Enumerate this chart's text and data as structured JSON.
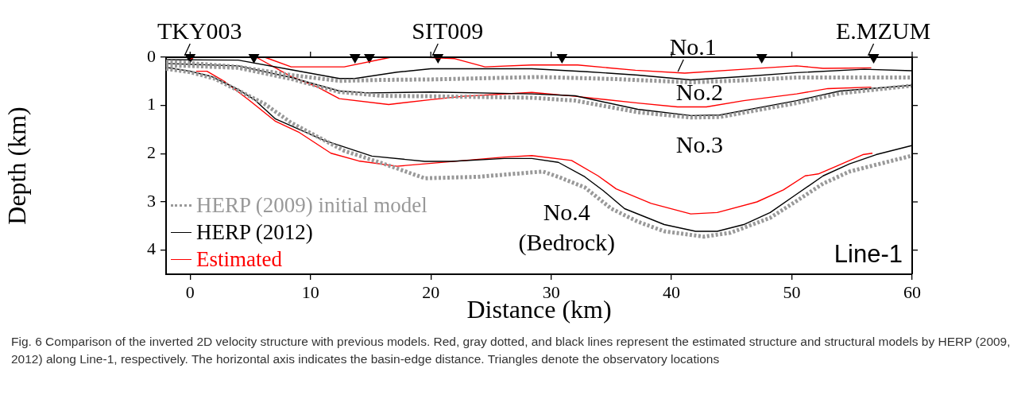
{
  "chart_data": {
    "type": "line",
    "xlabel": "Distance (km)",
    "ylabel": "Depth (km)",
    "xlim": [
      -2,
      60
    ],
    "xticks": [
      0,
      10,
      20,
      30,
      40,
      50,
      60
    ],
    "ylim": [
      4.5,
      0
    ],
    "yticks": [
      0,
      1,
      2,
      3,
      4
    ],
    "grid": false,
    "legend": "bottom left",
    "marker": "none",
    "series": [
      {
        "name": "HERP (2009) initial model",
        "color": "#999999",
        "line_style": "dotted",
        "x": [
          -2,
          0,
          4,
          8.4,
          12.4,
          16,
          20,
          29,
          35,
          41.6,
          46,
          50.4,
          55,
          60
        ],
        "values": [
          0.09,
          0.12,
          0.2,
          0.37,
          0.49,
          0.47,
          0.46,
          0.41,
          0.45,
          0.52,
          0.48,
          0.42,
          0.42,
          0.42
        ]
      },
      {
        "color": "#999999",
        "line_style": "dotted",
        "x": [
          -2,
          0,
          4,
          8.4,
          12.4,
          16,
          20,
          28.4,
          32,
          37.2,
          41.6,
          44,
          50.4,
          54,
          60
        ],
        "values": [
          0.17,
          0.18,
          0.22,
          0.45,
          0.72,
          0.8,
          0.81,
          0.84,
          0.9,
          1.14,
          1.25,
          1.24,
          0.95,
          0.75,
          0.59
        ]
      },
      {
        "color": "#999999",
        "line_style": "dotted",
        "x": [
          -2,
          0,
          2,
          4,
          6.2,
          8.4,
          10.6,
          12.8,
          16.1,
          19.5,
          23.9,
          29.3,
          30.6,
          32.8,
          35,
          37.2,
          39.4,
          42.7,
          44.9,
          48.2,
          50.4,
          52.6,
          54.8,
          57,
          60
        ],
        "values": [
          0.24,
          0.31,
          0.44,
          0.69,
          0.97,
          1.36,
          1.65,
          1.94,
          2.21,
          2.51,
          2.48,
          2.37,
          2.48,
          2.7,
          3.14,
          3.41,
          3.61,
          3.72,
          3.64,
          3.33,
          2.98,
          2.62,
          2.37,
          2.23,
          2.04
        ]
      },
      {
        "name": "HERP (2012)",
        "color": "#000000",
        "line_style": "solid",
        "x": [
          -2,
          4,
          8.4,
          12.4,
          13.7,
          17.2,
          20,
          28.4,
          33,
          37.2,
          41.6,
          46,
          50.4,
          56,
          60
        ],
        "values": [
          0.05,
          0.06,
          0.26,
          0.44,
          0.44,
          0.31,
          0.24,
          0.24,
          0.3,
          0.37,
          0.47,
          0.4,
          0.32,
          0.25,
          0.28
        ]
      },
      {
        "color": "#000000",
        "line_style": "solid",
        "x": [
          -2,
          4,
          8.4,
          12.4,
          14.8,
          20,
          28.4,
          32,
          37.2,
          41.6,
          44,
          50.4,
          54,
          60
        ],
        "values": [
          0.13,
          0.18,
          0.42,
          0.7,
          0.74,
          0.72,
          0.76,
          0.8,
          1.08,
          1.21,
          1.2,
          0.9,
          0.7,
          0.58
        ]
      },
      {
        "color": "#000000",
        "line_style": "solid",
        "x": [
          -2,
          0,
          1.8,
          4,
          5.3,
          7.1,
          11.1,
          15.1,
          19.5,
          21.7,
          26.1,
          28.4,
          30.6,
          32.8,
          34.3,
          36.1,
          39.4,
          42,
          43.8,
          46,
          48.2,
          50.4,
          52.6,
          54.8,
          57,
          60
        ],
        "values": [
          0.21,
          0.29,
          0.4,
          0.67,
          0.87,
          1.28,
          1.72,
          2.05,
          2.16,
          2.16,
          2.1,
          2.1,
          2.18,
          2.48,
          2.76,
          3.14,
          3.47,
          3.61,
          3.61,
          3.47,
          3.22,
          2.84,
          2.46,
          2.21,
          2.02,
          1.83
        ]
      },
      {
        "name": "Estimated",
        "color": "#ff0000",
        "line_style": "solid",
        "x": [
          0,
          0.3,
          6.2,
          8.4,
          12.8,
          16.7,
          19.4,
          22,
          24.5,
          28.4,
          32.2,
          37,
          41.1,
          46,
          50.4,
          52.6,
          56.6
        ],
        "values": [
          0.05,
          0,
          0,
          0.2,
          0.2,
          0,
          0,
          0.03,
          0.2,
          0.16,
          0.16,
          0.27,
          0.33,
          0.25,
          0.18,
          0.23,
          0.22
        ]
      },
      {
        "color": "#ff0000",
        "line_style": "solid",
        "x": [
          5.5,
          8.4,
          10.6,
          12.4,
          16.5,
          20,
          22.7,
          28.4,
          32,
          37.2,
          40.5,
          42.9,
          46,
          50.4,
          53,
          56.6
        ],
        "values": [
          0,
          0.4,
          0.62,
          0.86,
          0.98,
          0.88,
          0.81,
          0.73,
          0.81,
          0.95,
          1.03,
          1.03,
          0.9,
          0.76,
          0.65,
          0.62
        ]
      },
      {
        "color": "#ff0000",
        "line_style": "solid",
        "x": [
          0.5,
          1.4,
          2.9,
          4.9,
          7.1,
          9,
          11.7,
          14,
          17.2,
          19.5,
          26.1,
          28.4,
          31.7,
          33.9,
          35.4,
          38.3,
          41.6,
          43.8,
          47.1,
          49.3,
          51.1,
          52.2,
          53.7,
          55.9,
          56.7
        ],
        "values": [
          0.29,
          0.29,
          0.51,
          0.89,
          1.33,
          1.55,
          1.99,
          2.15,
          2.26,
          2.21,
          2.07,
          2.04,
          2.14,
          2.46,
          2.73,
          3.03,
          3.25,
          3.22,
          3,
          2.75,
          2.46,
          2.42,
          2.26,
          2.02,
          1.99
        ]
      },
      {
        "type": "scatter",
        "marker": "triangle",
        "color": "#000000",
        "x": [
          0,
          5.3,
          13.7,
          14.9,
          20.6,
          30.9,
          47.5,
          56.8
        ],
        "values": [
          0,
          0,
          0,
          0,
          0,
          0,
          0,
          0
        ]
      }
    ],
    "annotations": [
      {
        "text": "TKY003",
        "x": 0,
        "y": 0
      },
      {
        "text": "SIT009",
        "x": 20.6,
        "y": 0
      },
      {
        "text": "E.MZUM",
        "x": 56.8,
        "y": 0
      },
      {
        "text": "No.1",
        "x": 41,
        "y": 0.33
      },
      "No.2",
      "No.3",
      "No.4\n(Bedrock)",
      "Line-1",
      "Fig. 6  Comparison of the inverted 2D velocity structure with previous models. Red, gray dotted, and black lines represent the estimated structure and structural models by HERP (2009, 2012) along Line-1, respectively. The horizontal axis indicates the basin-edge distance. Triangles denote the observatory locations"
    ]
  }
}
